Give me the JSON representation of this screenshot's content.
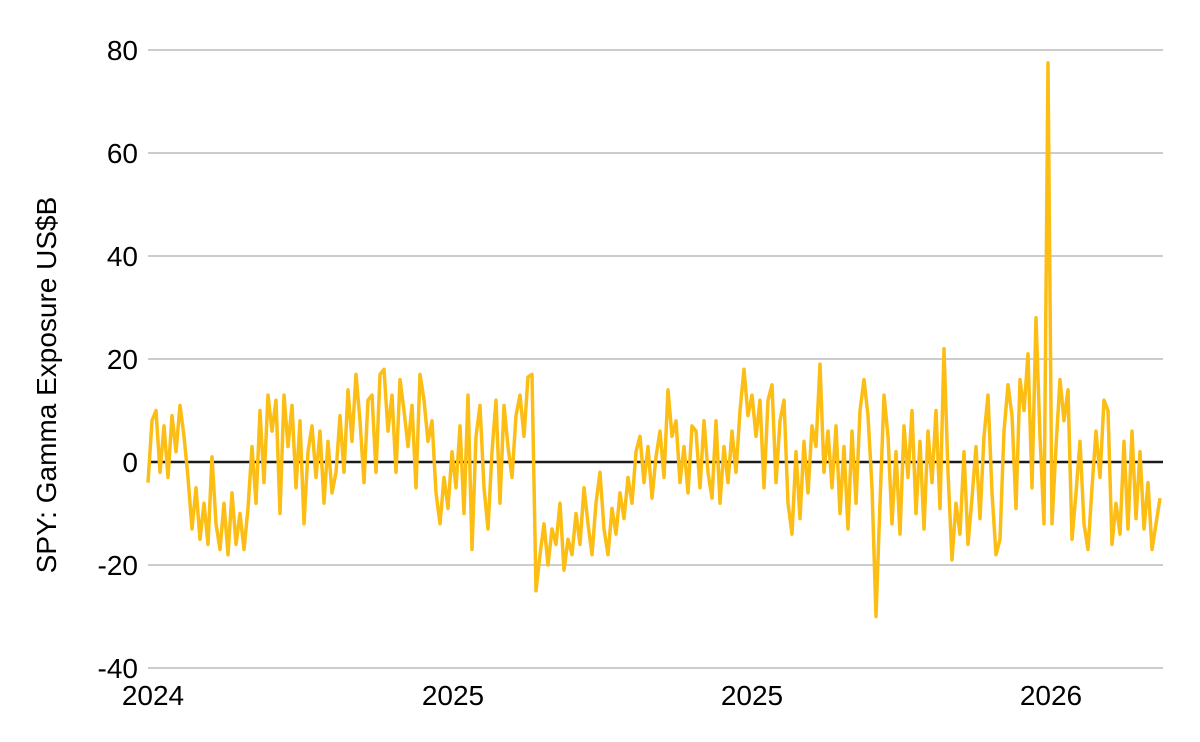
{
  "chart_data": {
    "type": "line",
    "title": "",
    "xlabel": "",
    "ylabel": "SPY: Gamma Exposure US$B",
    "ylim": [
      -40,
      80
    ],
    "yticks": [
      80,
      60,
      40,
      20,
      0,
      -20,
      -40
    ],
    "xtick_labels": [
      "2024",
      "2025",
      "2025",
      "2026"
    ],
    "grid": "horizontal",
    "zero_line": true,
    "legend": "none",
    "colors": {
      "line": "#FCBE14",
      "grid": "#CCCCCC",
      "zero_line": "#1A1A1A",
      "text": "#000000",
      "background": "#FFFFFF"
    },
    "series": [
      {
        "name": "SPY gamma exposure (US$B)",
        "color": "#FCBE14",
        "values": [
          -4,
          8,
          10,
          -2,
          7,
          -3,
          9,
          2,
          11,
          5,
          -3,
          -13,
          -5,
          -15,
          -8,
          -16,
          1,
          -12,
          -17,
          -8,
          -18,
          -6,
          -16,
          -10,
          -17,
          -9,
          3,
          -8,
          10,
          -4,
          13,
          6,
          12,
          -10,
          13,
          3,
          11,
          -5,
          8,
          -12,
          2,
          7,
          -3,
          6,
          -8,
          4,
          -6,
          -2,
          9,
          -2,
          14,
          4,
          17,
          8,
          -4,
          12,
          13,
          -2,
          17,
          18,
          6,
          13,
          -2,
          16,
          10,
          3,
          11,
          -5,
          17,
          12,
          4,
          8,
          -6,
          -12,
          -3,
          -9,
          2,
          -5,
          7,
          -10,
          13,
          -17,
          5,
          11,
          -5,
          -13,
          2,
          12,
          -8,
          11,
          3,
          -3,
          9,
          13,
          5,
          16.5,
          17,
          -25,
          -18,
          -12,
          -20,
          -13,
          -16,
          -8,
          -21,
          -15,
          -18,
          -10,
          -16,
          -5,
          -12,
          -18,
          -8,
          -2,
          -13,
          -18,
          -9,
          -14,
          -6,
          -11,
          -3,
          -8,
          2,
          5,
          -4,
          3,
          -7,
          1,
          6,
          -3,
          14,
          5,
          8,
          -4,
          3,
          -6,
          7,
          6,
          -5,
          8,
          -2,
          -7,
          8,
          -8,
          3,
          -4,
          6,
          -2,
          10,
          18,
          9,
          13,
          5,
          12,
          -5,
          12,
          15,
          -4,
          8,
          12,
          -8,
          -14,
          2,
          -11,
          4,
          -6,
          7,
          3,
          19,
          -2,
          6,
          -5,
          7,
          -10,
          3,
          -13,
          6,
          -8,
          10,
          16,
          9,
          -5,
          -30,
          -8,
          13,
          5,
          -12,
          2,
          -14,
          7,
          -3,
          10,
          -10,
          4,
          -13,
          6,
          -4,
          10,
          -9,
          22,
          -2,
          -19,
          -8,
          -14,
          2,
          -16,
          -7,
          3,
          -11,
          5,
          13,
          -6,
          -18,
          -15,
          6,
          15,
          9,
          -9,
          16,
          10,
          21,
          -5,
          28,
          5,
          -12,
          77.5,
          -12,
          3,
          16,
          8,
          14,
          -15,
          -6,
          4,
          -12,
          -17,
          -5,
          6,
          -3,
          12,
          10,
          -16,
          -8,
          -14,
          4,
          -13,
          6,
          -11,
          2,
          -13,
          -4,
          -17,
          -12,
          -7
        ]
      }
    ]
  }
}
